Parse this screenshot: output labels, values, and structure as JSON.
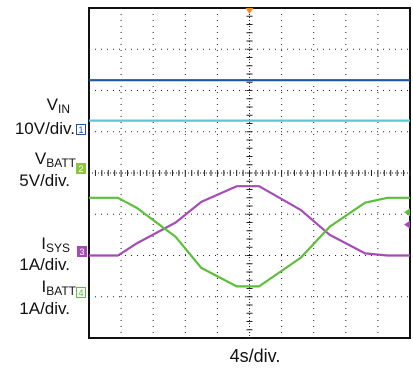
{
  "chart_data": {
    "type": "line",
    "title": "",
    "xlabel": "4s/div.",
    "grid": true,
    "divisions": {
      "x": 10,
      "y": 8
    },
    "time_per_div_s": 4,
    "x_range_div": [
      0,
      10
    ],
    "trigger_marker_color": "#f28a1e",
    "background": "#ffffff",
    "grid_color": "#222222",
    "channels": [
      {
        "id": "1",
        "label_main": "V",
        "label_sub": "IN",
        "scale": "10V/div.",
        "color": "#1f53a6"
      },
      {
        "id": "2",
        "label_main": "V",
        "label_sub": "BATT",
        "scale": "5V/div.",
        "color": "#8cc63f"
      },
      {
        "id": "3",
        "label_main": "I",
        "label_sub": "SYS",
        "scale": "1A/div.",
        "color": "#a54bb5"
      },
      {
        "id": "4",
        "label_main": "I",
        "label_sub": "BATT",
        "scale": "1A/div.",
        "color": "#5cbf3a"
      }
    ],
    "series": [
      {
        "id": "dark-blue-trace",
        "color": "#1f53a6",
        "x": [
          0,
          10
        ],
        "y": [
          6.25,
          6.25
        ]
      },
      {
        "id": "cyan-trace",
        "color": "#5cc8d0",
        "x": [
          0,
          10
        ],
        "y": [
          5.27,
          5.27
        ]
      },
      {
        "id": "purple-trace",
        "color": "#a54bb5",
        "x": [
          0,
          0.9,
          1.5,
          2.7,
          3.5,
          4.6,
          5.3,
          6.6,
          7.5,
          8.6,
          9.3,
          10
        ],
        "y": [
          2.0,
          2.0,
          2.3,
          2.8,
          3.3,
          3.68,
          3.68,
          3.1,
          2.5,
          2.05,
          2.0,
          2.0
        ]
      },
      {
        "id": "green-trace",
        "color": "#5cbf3a",
        "x": [
          0,
          0.9,
          1.5,
          2.7,
          3.5,
          4.6,
          5.3,
          6.6,
          7.5,
          8.6,
          9.3,
          10
        ],
        "y": [
          3.4,
          3.4,
          3.15,
          2.45,
          1.7,
          1.25,
          1.25,
          1.95,
          2.7,
          3.28,
          3.4,
          3.4
        ]
      }
    ],
    "markers": {
      "purple_right": 2.75,
      "green_right": 3.05
    }
  }
}
